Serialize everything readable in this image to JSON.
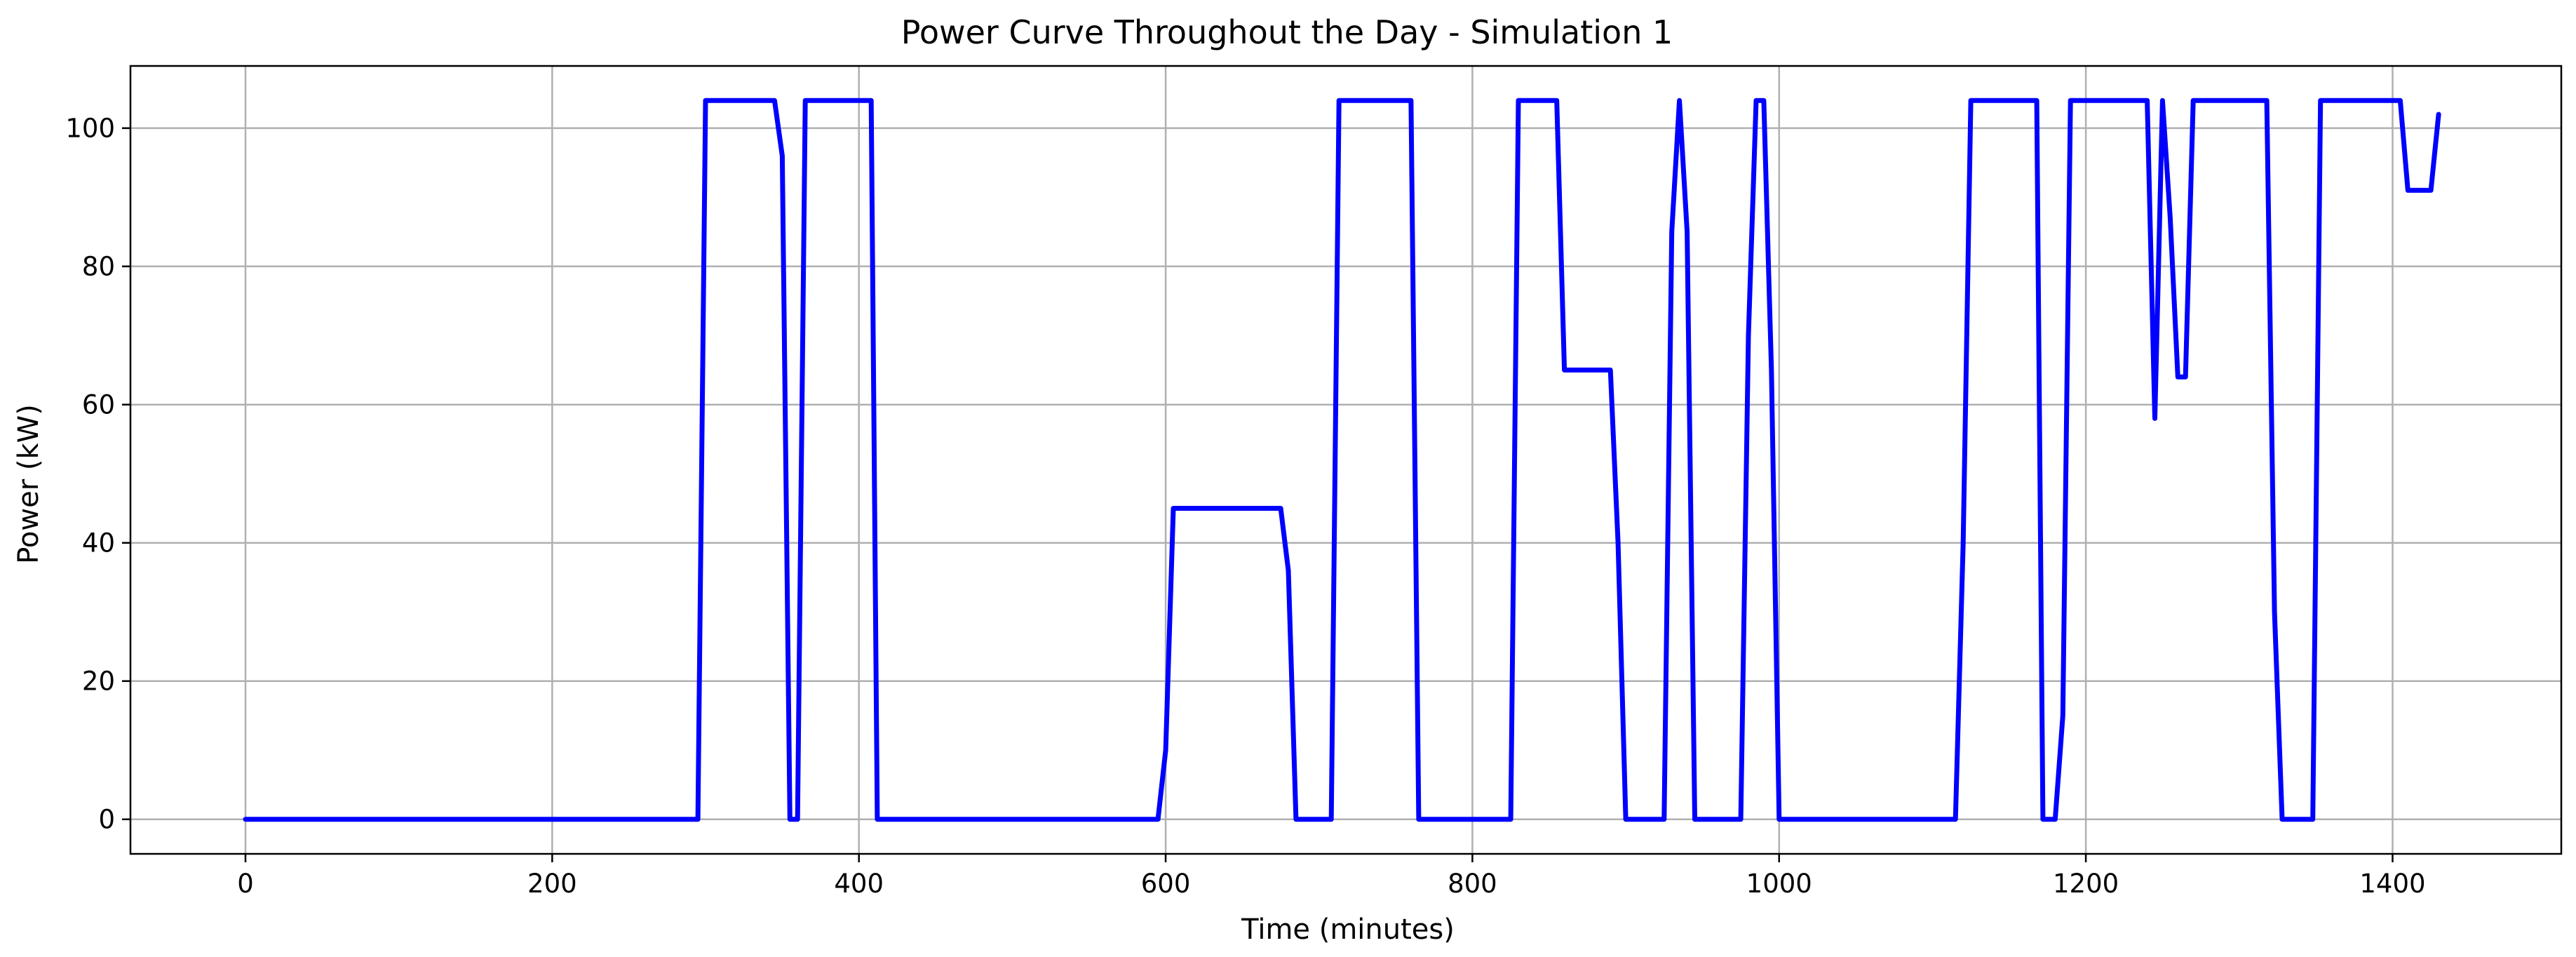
{
  "chart_data": {
    "type": "line",
    "title": "Power Curve Throughout the Day - Simulation 1",
    "xlabel": "Time (minutes)",
    "ylabel": "Power (kW)",
    "xlim": [
      -75,
      1510
    ],
    "ylim": [
      -5,
      109
    ],
    "xticks": [
      0,
      200,
      400,
      600,
      800,
      1000,
      1200,
      1400
    ],
    "yticks": [
      0,
      20,
      40,
      60,
      80,
      100
    ],
    "grid": true,
    "line_color": "#0000ff",
    "series": [
      {
        "x": [
          0,
          295,
          300,
          345,
          350,
          355,
          360,
          365,
          408,
          412,
          595,
          600,
          605,
          675,
          680,
          685,
          708,
          713,
          760,
          765,
          825,
          830,
          855,
          860,
          890,
          895,
          900,
          925,
          930,
          935,
          940,
          945,
          975,
          980,
          985,
          990,
          995,
          1000,
          1005,
          1115,
          1120,
          1125,
          1168,
          1172,
          1180,
          1185,
          1190,
          1240,
          1245,
          1250,
          1255,
          1260,
          1265,
          1270,
          1318,
          1323,
          1328,
          1348,
          1353,
          1405,
          1410,
          1425,
          1430
        ],
        "y": [
          0,
          0,
          104,
          104,
          96,
          0,
          0,
          104,
          104,
          0,
          0,
          10,
          45,
          45,
          36,
          0,
          0,
          104,
          104,
          0,
          0,
          104,
          104,
          65,
          65,
          40,
          0,
          0,
          85,
          104,
          85,
          0,
          0,
          70,
          104,
          104,
          65,
          0,
          0,
          0,
          40,
          104,
          104,
          0,
          0,
          15,
          104,
          104,
          58,
          104,
          87,
          64,
          64,
          104,
          104,
          30,
          0,
          0,
          104,
          104,
          91,
          91,
          102
        ]
      }
    ]
  }
}
